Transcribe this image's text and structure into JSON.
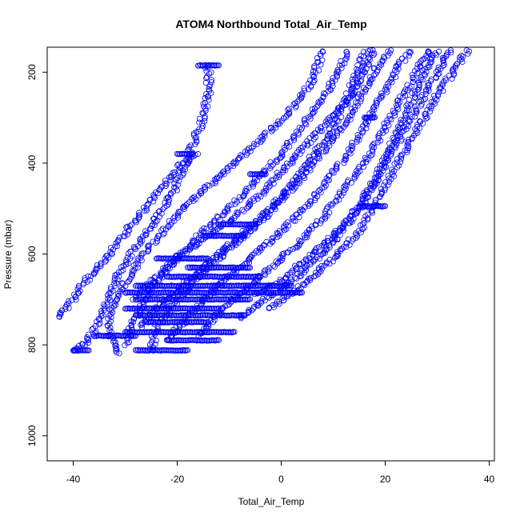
{
  "chart_data": {
    "type": "scatter",
    "title": "ATOM4 Northbound Total_Air_Temp",
    "xlabel": "Total_Air_Temp",
    "ylabel": "Pressure (mbar)",
    "xlim": [
      -45,
      41
    ],
    "ylim": [
      1055,
      145
    ],
    "y_reversed": true,
    "x_ticks": [
      -40,
      -20,
      0,
      20,
      40
    ],
    "y_ticks": [
      200,
      400,
      600,
      800,
      1000
    ],
    "x_tick_labels": [
      "-40",
      "-20",
      "0",
      "20",
      "40"
    ],
    "y_tick_labels": [
      "200",
      "400",
      "600",
      "800",
      "1000"
    ],
    "marker": "open-circle",
    "color": "#0000ff",
    "grid": false,
    "series": [
      {
        "values": [
          [
            -40,
            812
          ],
          [
            -38,
            800
          ],
          [
            -36,
            770
          ],
          [
            -34,
            720
          ],
          [
            -32,
            660
          ],
          [
            -29,
            600
          ],
          [
            -25,
            540
          ],
          [
            -21,
            470
          ],
          [
            -18,
            390
          ],
          [
            -15,
            300
          ],
          [
            -14,
            240
          ],
          [
            -14,
            185
          ]
        ]
      },
      {
        "values": [
          [
            -43,
            740
          ],
          [
            -40,
            700
          ],
          [
            -37,
            650
          ],
          [
            -33,
            600
          ],
          [
            -29,
            540
          ],
          [
            -24,
            470
          ],
          [
            -19,
            400
          ],
          [
            -16,
            380
          ]
        ]
      },
      {
        "values": [
          [
            -31,
            820
          ],
          [
            -33,
            780
          ],
          [
            -33,
            740
          ],
          [
            -31,
            680
          ],
          [
            -27,
            610
          ],
          [
            -22,
            540
          ],
          [
            -17,
            480
          ],
          [
            -12,
            430
          ],
          [
            -8,
            390
          ],
          [
            -3,
            340
          ],
          [
            2,
            280
          ],
          [
            6,
            220
          ],
          [
            8,
            150
          ]
        ]
      },
      {
        "values": [
          [
            -30,
            800
          ],
          [
            -28,
            740
          ],
          [
            -25,
            680
          ],
          [
            -21,
            620
          ],
          [
            -16,
            560
          ],
          [
            -10,
            500
          ],
          [
            -5,
            440
          ],
          [
            0,
            380
          ],
          [
            4,
            320
          ],
          [
            8,
            260
          ],
          [
            11,
            200
          ],
          [
            13,
            150
          ]
        ]
      },
      {
        "values": [
          [
            -25,
            812
          ],
          [
            -24,
            760
          ],
          [
            -20,
            700
          ],
          [
            -15,
            640
          ],
          [
            -10,
            590
          ],
          [
            -5,
            540
          ],
          [
            0,
            480
          ],
          [
            5,
            420
          ],
          [
            9,
            360
          ],
          [
            13,
            300
          ],
          [
            16,
            240
          ],
          [
            19,
            180
          ],
          [
            21,
            150
          ]
        ]
      },
      {
        "values": [
          [
            -22,
            790
          ],
          [
            -18,
            740
          ],
          [
            -14,
            690
          ],
          [
            -9,
            640
          ],
          [
            -4,
            590
          ],
          [
            1,
            540
          ],
          [
            6,
            480
          ],
          [
            10,
            420
          ],
          [
            14,
            360
          ],
          [
            17,
            300
          ],
          [
            20,
            240
          ],
          [
            23,
            180
          ],
          [
            25,
            150
          ]
        ]
      },
      {
        "values": [
          [
            -16,
            780
          ],
          [
            -12,
            730
          ],
          [
            -7,
            680
          ],
          [
            -2,
            630
          ],
          [
            3,
            580
          ],
          [
            8,
            520
          ],
          [
            12,
            460
          ],
          [
            16,
            400
          ],
          [
            19,
            340
          ],
          [
            22,
            280
          ],
          [
            25,
            220
          ],
          [
            28,
            160
          ],
          [
            29,
            150
          ]
        ]
      },
      {
        "values": [
          [
            -8,
            740
          ],
          [
            -3,
            700
          ],
          [
            2,
            660
          ],
          [
            7,
            610
          ],
          [
            11,
            560
          ],
          [
            15,
            500
          ],
          [
            18,
            440
          ],
          [
            21,
            380
          ],
          [
            24,
            320
          ],
          [
            27,
            260
          ],
          [
            30,
            200
          ],
          [
            32,
            160
          ],
          [
            33,
            150
          ]
        ]
      },
      {
        "values": [
          [
            -2,
            720
          ],
          [
            3,
            680
          ],
          [
            7,
            640
          ],
          [
            11,
            600
          ],
          [
            15,
            550
          ],
          [
            18,
            490
          ],
          [
            21,
            430
          ],
          [
            24,
            370
          ],
          [
            27,
            310
          ],
          [
            30,
            250
          ],
          [
            33,
            200
          ],
          [
            35,
            165
          ],
          [
            36,
            150
          ]
        ]
      },
      {
        "values": [
          [
            -28,
            700
          ],
          [
            -24,
            650
          ],
          [
            -19,
            600
          ],
          [
            -14,
            560
          ],
          [
            -9,
            520
          ],
          [
            -4,
            470
          ],
          [
            0,
            420
          ],
          [
            4,
            370
          ],
          [
            8,
            320
          ],
          [
            12,
            270
          ],
          [
            15,
            220
          ],
          [
            17,
            170
          ],
          [
            18,
            150
          ]
        ]
      },
      {
        "values": [
          [
            -5,
            690
          ],
          [
            0,
            660
          ],
          [
            4,
            620
          ],
          [
            8,
            580
          ],
          [
            12,
            540
          ],
          [
            15,
            490
          ],
          [
            18,
            440
          ],
          [
            20,
            390
          ],
          [
            22,
            340
          ],
          [
            24,
            290
          ],
          [
            26,
            240
          ],
          [
            28,
            190
          ],
          [
            30,
            150
          ]
        ]
      },
      {
        "values": [
          [
            -27,
            760
          ],
          [
            -23,
            710
          ],
          [
            -18,
            660
          ],
          [
            -13,
            610
          ],
          [
            -8,
            560
          ],
          [
            -3,
            510
          ],
          [
            1,
            460
          ],
          [
            5,
            400
          ],
          [
            9,
            340
          ],
          [
            12,
            280
          ],
          [
            14,
            220
          ],
          [
            16,
            160
          ],
          [
            17,
            150
          ]
        ]
      }
    ],
    "level_runs": [
      {
        "p": 812,
        "x": [
          -40,
          -37
        ]
      },
      {
        "p": 812,
        "x": [
          -28,
          -18
        ]
      },
      {
        "p": 780,
        "x": [
          -36,
          -28
        ]
      },
      {
        "p": 790,
        "x": [
          -22,
          -12
        ]
      },
      {
        "p": 772,
        "x": [
          -30,
          -9
        ]
      },
      {
        "p": 750,
        "x": [
          -26,
          -14
        ]
      },
      {
        "p": 735,
        "x": [
          -28,
          -7
        ]
      },
      {
        "p": 720,
        "x": [
          -30,
          -12
        ]
      },
      {
        "p": 700,
        "x": [
          -28,
          -6
        ]
      },
      {
        "p": 685,
        "x": [
          -30,
          4
        ]
      },
      {
        "p": 670,
        "x": [
          -28,
          2
        ]
      },
      {
        "p": 650,
        "x": [
          -22,
          -4
        ]
      },
      {
        "p": 630,
        "x": [
          -18,
          -6
        ]
      },
      {
        "p": 610,
        "x": [
          -24,
          -14
        ]
      },
      {
        "p": 560,
        "x": [
          -15,
          -7
        ]
      },
      {
        "p": 535,
        "x": [
          -12,
          -5
        ]
      },
      {
        "p": 425,
        "x": [
          -6,
          -3
        ]
      },
      {
        "p": 380,
        "x": [
          -20,
          -17
        ]
      },
      {
        "p": 185,
        "x": [
          -16,
          -12
        ]
      },
      {
        "p": 300,
        "x": [
          16,
          18
        ]
      },
      {
        "p": 495,
        "x": [
          15,
          20
        ]
      }
    ]
  }
}
